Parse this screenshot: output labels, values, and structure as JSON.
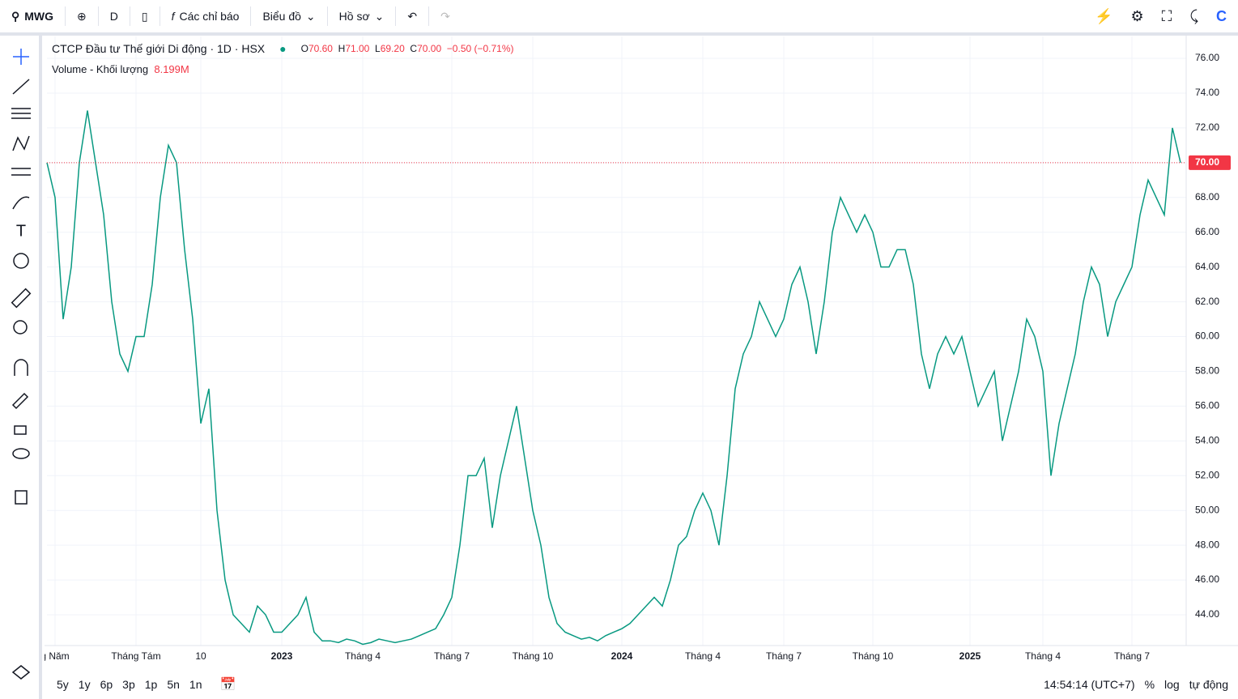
{
  "toolbar": {
    "symbol": "MWG",
    "interval": "D",
    "indicators": "Các chỉ báo",
    "chart_type": "Biểu đồ",
    "profile": "Hồ sơ"
  },
  "legend": {
    "title": "CTCP Đầu tư Thế giới Di động · 1D · HSX",
    "o_label": "O",
    "o": "70.60",
    "h_label": "H",
    "h": "71.00",
    "l_label": "L",
    "l": "69.20",
    "c_label": "C",
    "c": "70.00",
    "change": "−0.50 (−0.71%)",
    "volume_title": "Volume - Khối lượng",
    "volume": "8.199M"
  },
  "bottom": {
    "ranges": [
      "5y",
      "1y",
      "6p",
      "3p",
      "1p",
      "5n",
      "1n"
    ],
    "clock": "14:54:14 (UTC+7)",
    "percent": "%",
    "log": "log",
    "auto": "tự động"
  },
  "chart_data": {
    "type": "line",
    "categories": [
      null,
      "g Năm",
      null,
      null,
      null,
      null,
      null,
      null,
      null,
      null,
      null,
      "Tháng Tám",
      null,
      null,
      null,
      null,
      null,
      null,
      null,
      "10",
      null,
      null,
      null,
      null,
      null,
      null,
      null,
      null,
      null,
      "2023",
      null,
      null,
      null,
      null,
      null,
      null,
      null,
      null,
      null,
      "Tháng 4",
      null,
      null,
      null,
      null,
      null,
      null,
      null,
      null,
      null,
      null,
      "Tháng 7",
      null,
      null,
      null,
      null,
      null,
      null,
      null,
      null,
      null,
      "Tháng 10",
      null,
      null,
      null,
      null,
      null,
      null,
      null,
      null,
      null,
      null,
      "2024",
      null,
      null,
      null,
      null,
      null,
      null,
      null,
      null,
      null,
      "Tháng 4",
      null,
      null,
      null,
      null,
      null,
      null,
      null,
      null,
      null,
      "Tháng 7",
      null,
      null,
      null,
      null,
      null,
      null,
      null,
      null,
      null,
      null,
      "Tháng 10",
      null,
      null,
      null,
      null,
      null,
      null,
      null,
      null,
      null,
      null,
      null,
      "2025",
      null,
      null,
      null,
      null,
      null,
      null,
      null,
      null,
      "Tháng 4",
      null,
      null,
      null,
      null,
      null,
      null,
      null,
      null,
      null,
      null,
      "Tháng 7",
      null,
      null,
      null,
      null,
      null,
      null
    ],
    "series": [
      {
        "name": "MWG",
        "color": "#089981",
        "values": [
          70,
          68,
          61,
          64,
          70,
          73,
          70,
          67,
          62,
          59,
          58,
          60,
          60,
          63,
          68,
          71,
          70,
          65,
          61,
          55,
          57,
          50,
          46,
          44,
          43.5,
          43,
          44.5,
          44,
          43,
          43,
          43.5,
          44,
          45,
          43,
          42.5,
          42.5,
          42.4,
          42.6,
          42.5,
          42.3,
          42.4,
          42.6,
          42.5,
          42.4,
          42.5,
          42.6,
          42.8,
          43,
          43.2,
          44,
          45,
          48,
          52,
          52,
          53,
          49,
          52,
          54,
          56,
          53,
          50,
          48,
          45,
          43.5,
          43,
          42.8,
          42.6,
          42.7,
          42.5,
          42.8,
          43,
          43.2,
          43.5,
          44,
          44.5,
          45,
          44.5,
          46,
          48,
          48.5,
          50,
          51,
          50,
          48,
          52,
          57,
          59,
          60,
          62,
          61,
          60,
          61,
          63,
          64,
          62,
          59,
          62,
          66,
          68,
          67,
          66,
          67,
          66,
          64,
          64,
          65,
          65,
          63,
          59,
          57,
          59,
          60,
          59,
          60,
          58,
          56,
          57,
          58,
          54,
          56,
          58,
          61,
          60,
          58,
          52,
          55,
          57,
          59,
          62,
          64,
          63,
          60,
          62,
          63,
          64,
          67,
          69,
          68,
          67,
          72,
          70
        ]
      }
    ],
    "ylim": [
      42.23,
      77.26
    ],
    "yticks": [
      {
        "value": 44,
        "label": "44.00"
      },
      {
        "value": 46,
        "label": "46.00"
      },
      {
        "value": 48,
        "label": "48.00"
      },
      {
        "value": 50,
        "label": "50.00"
      },
      {
        "value": 52,
        "label": "52.00"
      },
      {
        "value": 54,
        "label": "54.00"
      },
      {
        "value": 56,
        "label": "56.00"
      },
      {
        "value": 58,
        "label": "58.00"
      },
      {
        "value": 60,
        "label": "60.00"
      },
      {
        "value": 62,
        "label": "62.00"
      },
      {
        "value": 64,
        "label": "64.00"
      },
      {
        "value": 66,
        "label": "66.00"
      },
      {
        "value": 68,
        "label": "68.00"
      },
      {
        "value": 70,
        "label": "70.00"
      },
      {
        "value": 72,
        "label": "72.00"
      },
      {
        "value": 74,
        "label": "74.00"
      },
      {
        "value": 76,
        "label": "76.00"
      }
    ],
    "last_price": {
      "value": 70,
      "label": "70.00",
      "color": "#f23645"
    },
    "grid": true
  }
}
